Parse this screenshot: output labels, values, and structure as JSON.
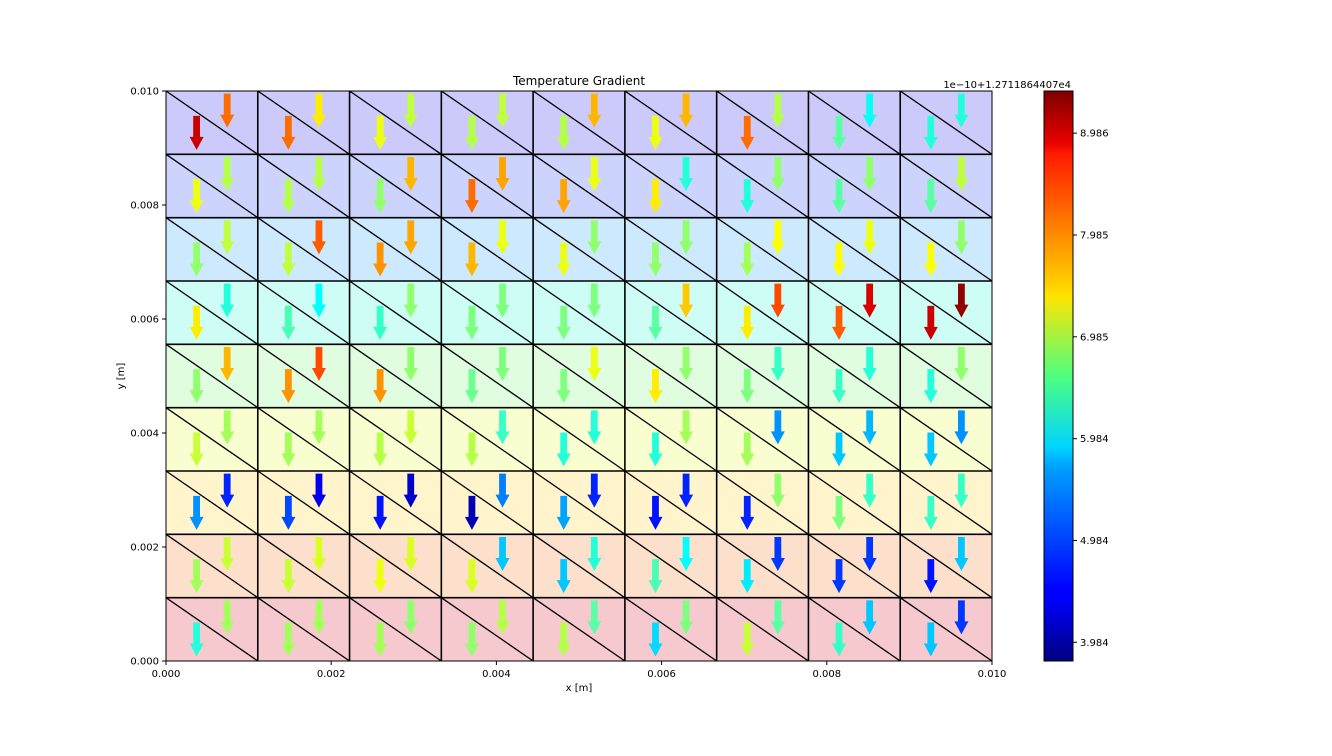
{
  "chart_data": {
    "type": "quiver",
    "title": "Temperature Gradient",
    "xlabel": "x [m]",
    "ylabel": "y [m]",
    "xlim": [
      0.0,
      0.01
    ],
    "ylim": [
      0.0,
      0.01
    ],
    "xticks": [
      "0.000",
      "0.002",
      "0.004",
      "0.006",
      "0.008",
      "0.010"
    ],
    "yticks": [
      "0.000",
      "0.002",
      "0.004",
      "0.006",
      "0.008",
      "0.010"
    ],
    "mesh": {
      "nx": 9,
      "ny": 9,
      "diagonal": "top-left to bottom-right"
    },
    "background_band_colors_bottom_to_top": [
      "#f6c9cf",
      "#fde0cb",
      "#fff4cc",
      "#f8fecf",
      "#e0fde0",
      "#cdfdf5",
      "#cce9fe",
      "#ccd4fd",
      "#cccafa"
    ],
    "colorbar": {
      "offset_text": "1e−10+1.2711864407e4",
      "tick_labels": [
        "3.984",
        "4.984",
        "5.984",
        "6.985",
        "7.985",
        "8.986"
      ],
      "tick_values": [
        3.984,
        4.984,
        5.984,
        6.985,
        7.985,
        8.986
      ],
      "range": [
        3.8,
        9.4
      ],
      "colormap": "jet"
    },
    "arrows_note": "Each cell holds two downward arrows (lower-left and upper-right triangle). Values are colorbar magnitudes, row 1 = top row.",
    "arrows": [
      [
        [
          8.99,
          8.1
        ],
        [
          8.1,
          7.4
        ],
        [
          7.2,
          6.95
        ],
        [
          6.9,
          6.95
        ],
        [
          6.9,
          7.7
        ],
        [
          7.2,
          7.7
        ],
        [
          8.1,
          6.9
        ],
        [
          6.4,
          5.95
        ],
        [
          6.1,
          6.1
        ]
      ],
      [
        [
          7.2,
          6.9
        ],
        [
          6.9,
          6.9
        ],
        [
          6.7,
          7.7
        ],
        [
          8.1,
          7.8
        ],
        [
          7.8,
          7.2
        ],
        [
          7.4,
          6.1
        ],
        [
          6.1,
          6.7
        ],
        [
          6.4,
          6.7
        ],
        [
          6.4,
          6.95
        ]
      ],
      [
        [
          6.7,
          6.95
        ],
        [
          6.95,
          8.2
        ],
        [
          7.9,
          7.8
        ],
        [
          7.7,
          7.2
        ],
        [
          7.2,
          6.7
        ],
        [
          6.7,
          6.7
        ],
        [
          6.8,
          7.3
        ],
        [
          7.3,
          7.2
        ],
        [
          7.3,
          6.7
        ]
      ],
      [
        [
          7.4,
          6.1
        ],
        [
          6.3,
          5.9
        ],
        [
          6.2,
          6.7
        ],
        [
          6.6,
          6.6
        ],
        [
          6.6,
          6.6
        ],
        [
          6.4,
          7.6
        ],
        [
          7.4,
          8.3
        ],
        [
          8.2,
          8.9
        ],
        [
          8.99,
          9.3
        ]
      ],
      [
        [
          6.7,
          7.7
        ],
        [
          7.9,
          8.3
        ],
        [
          7.9,
          6.7
        ],
        [
          6.5,
          6.6
        ],
        [
          6.6,
          7.2
        ],
        [
          7.4,
          6.7
        ],
        [
          6.6,
          6.2
        ],
        [
          6.2,
          6.1
        ],
        [
          6.1,
          6.7
        ]
      ],
      [
        [
          7.0,
          6.8
        ],
        [
          6.8,
          6.8
        ],
        [
          6.9,
          7.0
        ],
        [
          6.9,
          6.2
        ],
        [
          6.1,
          6.1
        ],
        [
          6.1,
          6.8
        ],
        [
          6.8,
          5.3
        ],
        [
          5.6,
          5.5
        ],
        [
          5.6,
          5.3
        ]
      ],
      [
        [
          5.3,
          4.7
        ],
        [
          4.9,
          4.4
        ],
        [
          4.6,
          4.2
        ],
        [
          4.1,
          5.2
        ],
        [
          5.4,
          4.7
        ],
        [
          4.6,
          4.7
        ],
        [
          4.7,
          6.7
        ],
        [
          6.6,
          6.2
        ],
        [
          6.2,
          6.2
        ]
      ],
      [
        [
          6.8,
          7.0
        ],
        [
          7.0,
          7.1
        ],
        [
          7.2,
          7.1
        ],
        [
          7.1,
          5.6
        ],
        [
          5.6,
          6.1
        ],
        [
          6.3,
          5.9
        ],
        [
          5.8,
          4.8
        ],
        [
          4.8,
          4.8
        ],
        [
          4.6,
          5.6
        ]
      ],
      [
        [
          6.1,
          6.8
        ],
        [
          6.8,
          6.8
        ],
        [
          6.8,
          6.7
        ],
        [
          6.7,
          6.9
        ],
        [
          6.9,
          6.4
        ],
        [
          5.7,
          6.6
        ],
        [
          7.0,
          6.4
        ],
        [
          6.2,
          5.6
        ],
        [
          5.6,
          4.8
        ]
      ]
    ]
  }
}
